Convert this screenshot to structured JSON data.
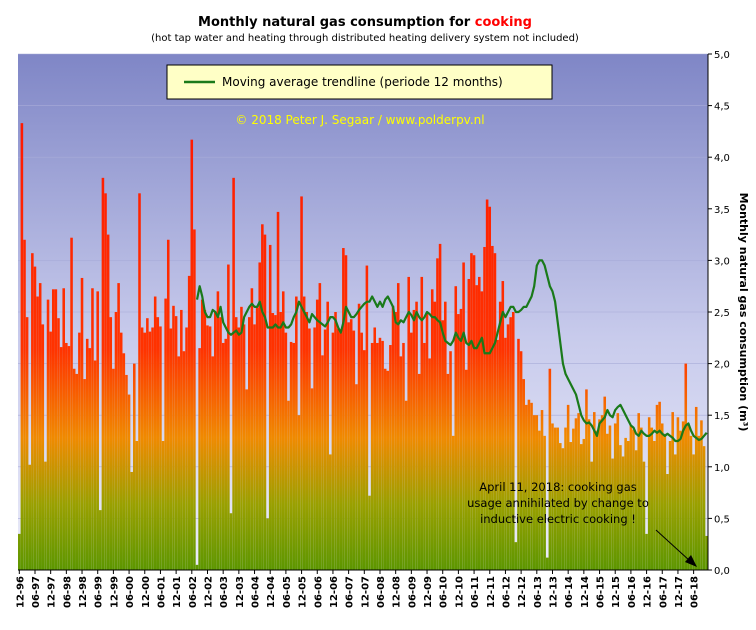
{
  "chart_data": {
    "type": "bar",
    "title_prefix": "Monthly natural gas consumption for",
    "title_highlight": "cooking",
    "subtitle": "(hot tap water and heating through distributed heating delivery system not included)",
    "ylabel": "Monthly natural gas consumption (m³)",
    "ylim": [
      0,
      5.0
    ],
    "y_ticks": [
      "0,0",
      "0,5",
      "1,0",
      "1,5",
      "2,0",
      "2,5",
      "3,0",
      "3,5",
      "4,0",
      "4,5",
      "5,0"
    ],
    "x_tick_labels": [
      "12-96",
      "06-97",
      "12-97",
      "06-98",
      "12-98",
      "06-99",
      "12-99",
      "06-00",
      "12-00",
      "06-01",
      "12-01",
      "06-02",
      "12-02",
      "06-03",
      "12-03",
      "06-04",
      "12-04",
      "06-05",
      "12-05",
      "06-06",
      "12-06",
      "06-07",
      "12-07",
      "06-08",
      "12-08",
      "06-09",
      "12-09",
      "06-10",
      "12-10",
      "06-11",
      "12-11",
      "06-12",
      "12-12",
      "06-13",
      "12-13",
      "06-14",
      "12-14",
      "06-15",
      "12-15",
      "06-16",
      "12-16",
      "06-17",
      "12-17",
      "06-18"
    ],
    "first_month": "12-96",
    "last_month": "06-18",
    "series": [
      {
        "name": "Monthly natural gas consumption",
        "color_top": "#ff2200",
        "color_bottom": "#5a9a00",
        "values": [
          0.35,
          4.33,
          3.2,
          2.45,
          1.02,
          3.07,
          2.94,
          2.65,
          2.78,
          2.38,
          1.05,
          2.62,
          2.31,
          2.72,
          2.72,
          2.44,
          2.16,
          2.73,
          2.2,
          2.17,
          3.22,
          1.95,
          1.9,
          2.3,
          2.83,
          1.85,
          2.24,
          2.15,
          2.73,
          2.03,
          2.7,
          0.58,
          3.8,
          3.65,
          3.25,
          2.45,
          1.95,
          2.5,
          2.78,
          2.3,
          2.1,
          1.89,
          1.7,
          0.95,
          2.0,
          1.25,
          3.65,
          2.35,
          2.3,
          2.44,
          2.31,
          2.35,
          2.65,
          2.45,
          2.36,
          1.25,
          2.63,
          3.2,
          2.34,
          2.56,
          2.46,
          2.07,
          2.52,
          2.12,
          2.35,
          2.85,
          4.17,
          3.3,
          0.05,
          2.15,
          2.62,
          2.52,
          2.37,
          2.36,
          2.07,
          2.5,
          2.7,
          2.45,
          2.2,
          2.24,
          2.96,
          0.55,
          3.8,
          2.45,
          2.35,
          2.55,
          2.38,
          1.75,
          2.45,
          2.73,
          2.38,
          2.54,
          2.98,
          3.35,
          3.25,
          0.5,
          3.15,
          2.49,
          2.47,
          3.47,
          2.5,
          2.7,
          2.3,
          1.64,
          2.21,
          2.2,
          2.65,
          1.5,
          3.62,
          2.65,
          2.5,
          2.34,
          1.76,
          2.35,
          2.62,
          2.78,
          2.08,
          2.33,
          2.6,
          1.12,
          2.3,
          2.5,
          2.34,
          2.3,
          3.12,
          3.05,
          2.4,
          2.43,
          2.32,
          1.8,
          2.58,
          2.3,
          2.13,
          2.95,
          0.72,
          2.2,
          2.35,
          2.2,
          2.25,
          2.22,
          1.95,
          1.93,
          2.18,
          2.56,
          2.5,
          2.78,
          2.07,
          2.2,
          1.64,
          2.84,
          2.3,
          2.52,
          2.6,
          1.9,
          2.84,
          2.2,
          2.5,
          2.05,
          2.72,
          2.6,
          3.02,
          3.16,
          2.42,
          2.6,
          1.9,
          2.12,
          1.3,
          2.75,
          2.48,
          2.53,
          2.98,
          1.94,
          2.82,
          3.07,
          3.05,
          2.76,
          2.84,
          2.7,
          3.13,
          3.59,
          3.52,
          3.14,
          3.07,
          2.23,
          2.6,
          2.8,
          2.25,
          2.38,
          2.45,
          2.5,
          0.27,
          2.24,
          2.12,
          1.85,
          1.6,
          1.65,
          1.62,
          1.5,
          1.5,
          1.35,
          1.55,
          1.3,
          0.12,
          1.95,
          1.42,
          1.38,
          1.38,
          1.23,
          1.18,
          1.38,
          1.6,
          1.24,
          1.37,
          1.47,
          1.52,
          1.22,
          1.27,
          1.75,
          1.46,
          1.05,
          1.53,
          1.35,
          1.46,
          1.5,
          1.68,
          1.32,
          1.4,
          1.08,
          1.42,
          1.52,
          1.21,
          1.1,
          1.28,
          1.25,
          1.4,
          1.36,
          1.16,
          1.52,
          1.38,
          1.05,
          0.35,
          1.48,
          1.38,
          1.25,
          1.6,
          1.63,
          1.42,
          1.32,
          0.93,
          1.25,
          1.53,
          1.12,
          1.48,
          1.35,
          1.44,
          2.0,
          1.42,
          1.3,
          1.12,
          1.58,
          1.3,
          1.45,
          1.2,
          0.33
        ]
      },
      {
        "name": "Moving average trendline (periode 12 months)",
        "color": "#1a7a1a",
        "values": [
          2.62,
          2.75,
          2.65,
          2.5,
          2.45,
          2.45,
          2.52,
          2.5,
          2.45,
          2.55,
          2.4,
          2.35,
          2.3,
          2.28,
          2.3,
          2.32,
          2.28,
          2.3,
          2.45,
          2.5,
          2.55,
          2.58,
          2.55,
          2.55,
          2.6,
          2.5,
          2.45,
          2.35,
          2.35,
          2.35,
          2.38,
          2.35,
          2.35,
          2.4,
          2.35,
          2.35,
          2.38,
          2.45,
          2.5,
          2.6,
          2.55,
          2.5,
          2.45,
          2.4,
          2.48,
          2.45,
          2.42,
          2.4,
          2.38,
          2.36,
          2.4,
          2.45,
          2.45,
          2.42,
          2.35,
          2.3,
          2.4,
          2.55,
          2.5,
          2.45,
          2.45,
          2.48,
          2.52,
          2.55,
          2.58,
          2.6,
          2.6,
          2.65,
          2.6,
          2.55,
          2.6,
          2.55,
          2.62,
          2.65,
          2.6,
          2.55,
          2.4,
          2.38,
          2.42,
          2.4,
          2.45,
          2.5,
          2.47,
          2.42,
          2.5,
          2.45,
          2.42,
          2.45,
          2.5,
          2.48,
          2.45,
          2.45,
          2.42,
          2.4,
          2.3,
          2.22,
          2.2,
          2.18,
          2.22,
          2.3,
          2.25,
          2.22,
          2.3,
          2.2,
          2.18,
          2.22,
          2.15,
          2.15,
          2.2,
          2.25,
          2.1,
          2.1,
          2.1,
          2.15,
          2.2,
          2.3,
          2.4,
          2.5,
          2.45,
          2.5,
          2.55,
          2.55,
          2.5,
          2.5,
          2.52,
          2.55,
          2.55,
          2.6,
          2.65,
          2.75,
          2.95,
          3.0,
          3.0,
          2.95,
          2.85,
          2.75,
          2.7,
          2.6,
          2.4,
          2.2,
          2.0,
          1.9,
          1.85,
          1.8,
          1.75,
          1.7,
          1.6,
          1.5,
          1.45,
          1.42,
          1.43,
          1.4,
          1.35,
          1.3,
          1.42,
          1.45,
          1.48,
          1.55,
          1.5,
          1.48,
          1.55,
          1.58,
          1.6,
          1.55,
          1.5,
          1.45,
          1.4,
          1.38,
          1.32,
          1.3,
          1.35,
          1.32,
          1.3,
          1.3,
          1.32,
          1.35,
          1.33,
          1.35,
          1.32,
          1.3,
          1.32,
          1.3,
          1.28,
          1.25,
          1.25,
          1.27,
          1.35,
          1.4,
          1.42,
          1.35,
          1.3,
          1.28,
          1.26,
          1.27,
          1.3,
          1.33
        ]
      }
    ],
    "legend_label": "Moving average trendline (periode 12 months)",
    "copyright": "© 2018 Peter J. Segaar / www.polderpv.nl",
    "annotation_lines": [
      "April 11, 2018: cooking gas",
      "usage annihilated by change to",
      "inductive electric cooking !"
    ]
  }
}
